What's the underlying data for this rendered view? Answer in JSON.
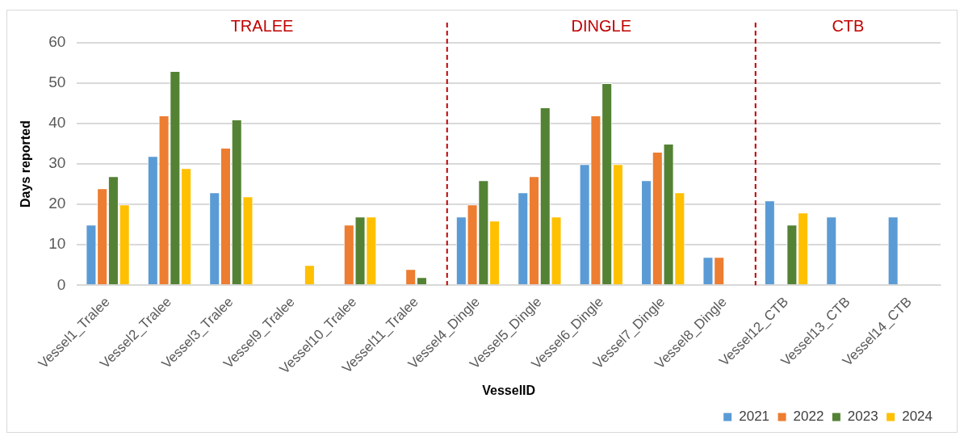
{
  "chart_data": {
    "type": "bar",
    "xlabel": "VesselID",
    "ylabel": "Days reported",
    "categories": [
      "Vessel1_Tralee",
      "Vessel2_Tralee",
      "Vessel3_Tralee",
      "Vessel9_Tralee",
      "Vessel10_Tralee",
      "Vessel11_Tralee",
      "Vessel4_Dingle",
      "Vessel5_Dingle",
      "Vessel6_Dingle",
      "Vessel7_Dingle",
      "Vessel8_Dingle",
      "Vessel12_CTB",
      "Vessel13_CTB",
      "Vessel14_CTB"
    ],
    "series": [
      {
        "name": "2021",
        "color": "#5b9bd5",
        "values": [
          15,
          32,
          23,
          null,
          null,
          null,
          17,
          23,
          30,
          26,
          7,
          21,
          17,
          17
        ]
      },
      {
        "name": "2022",
        "color": "#ed7d31",
        "values": [
          24,
          42,
          34,
          null,
          15,
          4,
          20,
          27,
          42,
          33,
          7,
          null,
          null,
          null
        ]
      },
      {
        "name": "2023",
        "color": "#548235",
        "values": [
          27,
          53,
          41,
          null,
          17,
          2,
          26,
          44,
          50,
          35,
          null,
          15,
          null,
          null
        ]
      },
      {
        "name": "2024",
        "color": "#ffc000",
        "values": [
          20,
          29,
          22,
          5,
          17,
          null,
          16,
          17,
          30,
          23,
          null,
          18,
          null,
          null
        ]
      }
    ],
    "ylim": [
      0,
      60
    ],
    "yticks": [
      0,
      10,
      20,
      30,
      40,
      50,
      60
    ],
    "grid": "y",
    "legend": "bottom right",
    "annotations": [
      "TRALEE",
      "DINGLE",
      "CTB"
    ]
  }
}
